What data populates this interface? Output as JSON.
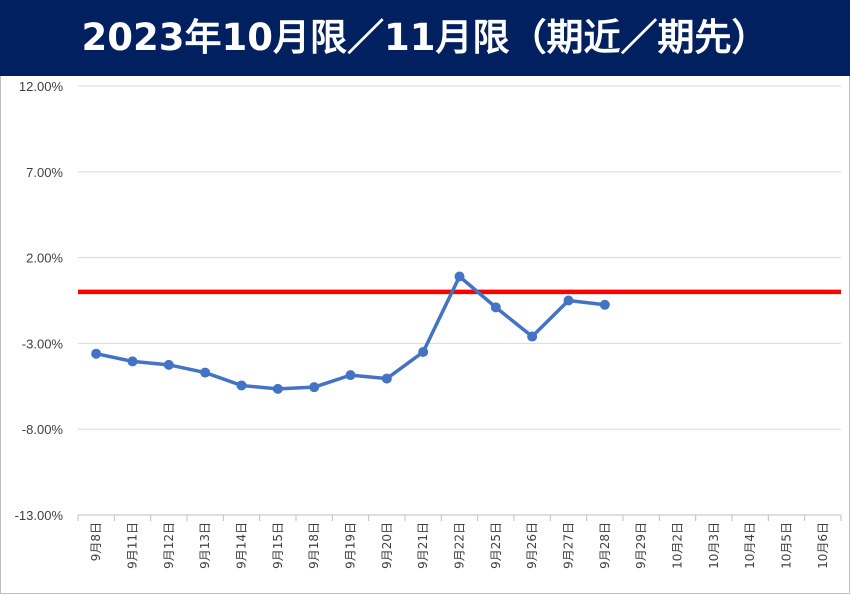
{
  "header": {
    "title": "2023年10月限／11月限（期近／期先）"
  },
  "colors": {
    "header_bg": "#002060",
    "series_line": "#4472C4",
    "reference_line": "#FF0000",
    "grid": "#D9D9D9"
  },
  "chart_data": {
    "type": "line",
    "title": "",
    "xlabel": "",
    "ylabel": "",
    "ylim": [
      -13.0,
      12.0
    ],
    "grid": true,
    "yticks": [
      "12.00%",
      "7.00%",
      "2.00%",
      "-3.00%",
      "-8.00%",
      "-13.00%"
    ],
    "ytick_values": [
      12,
      7,
      2,
      -3,
      -8,
      -13
    ],
    "categories": [
      "9月8日",
      "9月11日",
      "9月12日",
      "9月13日",
      "9月14日",
      "9月15日",
      "9月18日",
      "9月19日",
      "9月20日",
      "9月21日",
      "9月22日",
      "9月25日",
      "9月26日",
      "9月27日",
      "9月28日",
      "9月29日",
      "10月2日",
      "10月3日",
      "10月4日",
      "10月5日",
      "10月6日"
    ],
    "series": [
      {
        "values": [
          -3.6,
          -4.05,
          -4.25,
          -4.7,
          -5.45,
          -5.65,
          -5.55,
          -4.85,
          -5.05,
          -3.5,
          0.9,
          -0.9,
          -2.6,
          -0.5,
          -0.75,
          null,
          null,
          null,
          null,
          null,
          null
        ]
      }
    ],
    "reference_line": {
      "value": 0.0
    }
  }
}
